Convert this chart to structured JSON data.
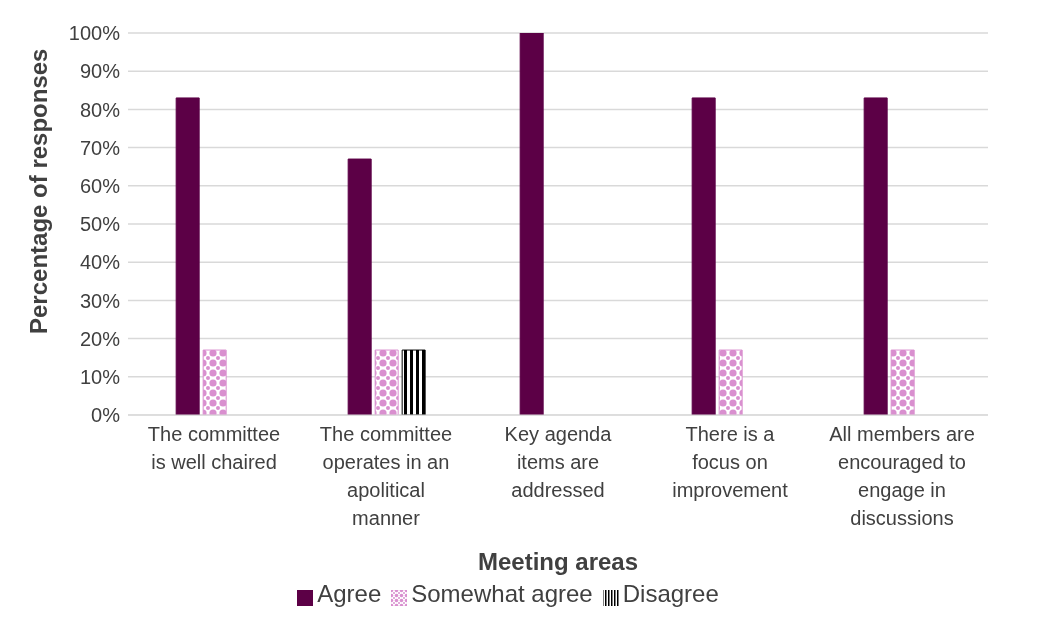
{
  "chart_data": {
    "type": "bar",
    "xlabel": "Meeting areas",
    "ylabel": "Percentage of responses",
    "categories": [
      "The committee is well chaired",
      "The committee operates in an apolitical manner",
      "Key agenda items are addressed",
      "There is a focus on improvement",
      "All members are encouraged to engage in discussions"
    ],
    "series": [
      {
        "name": "Agree",
        "color": "#5c0046",
        "values": [
          83,
          67,
          100,
          83,
          83
        ]
      },
      {
        "name": "Somewhat agree",
        "color": "#d98fcf",
        "values": [
          17,
          17,
          0,
          17,
          17
        ]
      },
      {
        "name": "Disagree",
        "color": "#000000",
        "values": [
          0,
          17,
          0,
          0,
          0
        ]
      }
    ],
    "ylim": [
      0,
      100
    ],
    "yticks": [
      {
        "value": 0,
        "label": "0%"
      },
      {
        "value": 10,
        "label": "10%"
      },
      {
        "value": 20,
        "label": "20%"
      },
      {
        "value": 30,
        "label": "30%"
      },
      {
        "value": 40,
        "label": "40%"
      },
      {
        "value": 50,
        "label": "50%"
      },
      {
        "value": 60,
        "label": "60%"
      },
      {
        "value": 70,
        "label": "70%"
      },
      {
        "value": 80,
        "label": "80%"
      },
      {
        "value": 90,
        "label": "90%"
      },
      {
        "value": 100,
        "label": "100%"
      }
    ],
    "grid": "y",
    "legend": "bottom"
  }
}
